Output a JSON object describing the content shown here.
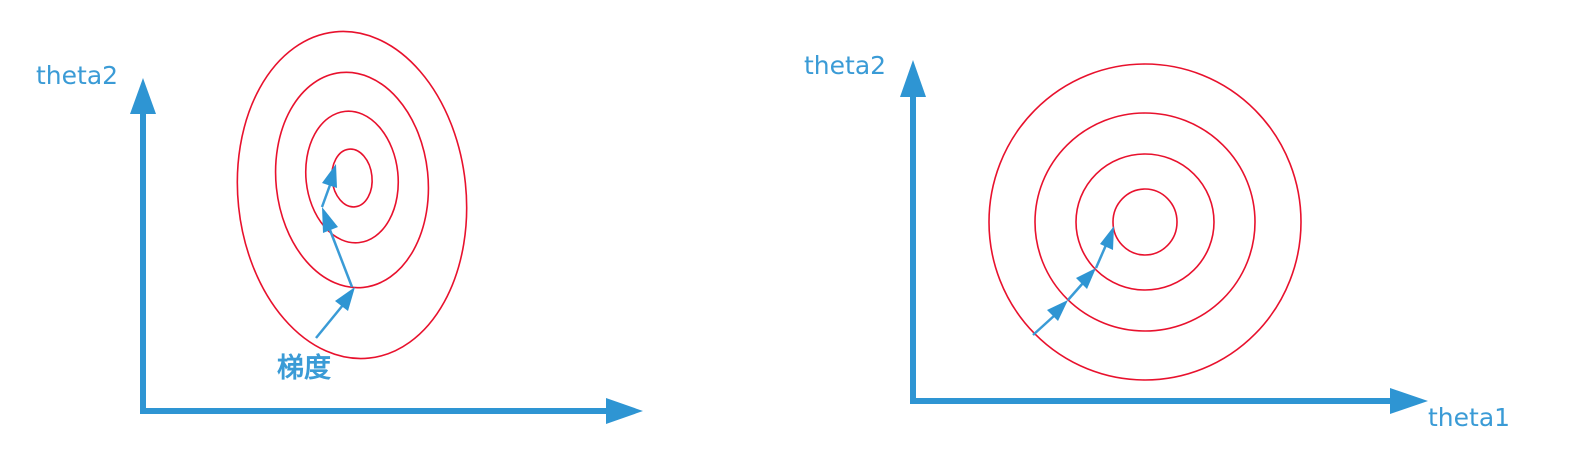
{
  "left_panel": {
    "y_axis_label": "theta2",
    "annotation_label": "梯度"
  },
  "right_panel": {
    "y_axis_label": "theta2",
    "x_axis_label": "theta1"
  },
  "colors": {
    "axis": "#2e95d3",
    "contour": "#e8112d",
    "label": "#3a9bd6"
  }
}
